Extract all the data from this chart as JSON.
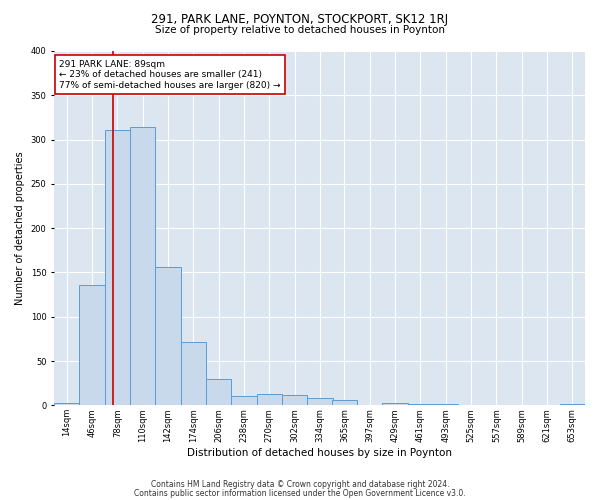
{
  "title1": "291, PARK LANE, POYNTON, STOCKPORT, SK12 1RJ",
  "title2": "Size of property relative to detached houses in Poynton",
  "xlabel": "Distribution of detached houses by size in Poynton",
  "ylabel": "Number of detached properties",
  "footer1": "Contains HM Land Registry data © Crown copyright and database right 2024.",
  "footer2": "Contains public sector information licensed under the Open Government Licence v3.0.",
  "annotation_line1": "291 PARK LANE: 89sqm",
  "annotation_line2": "← 23% of detached houses are smaller (241)",
  "annotation_line3": "77% of semi-detached houses are larger (820) →",
  "property_size": 89,
  "bins": [
    14,
    46,
    78,
    110,
    142,
    174,
    206,
    238,
    270,
    302,
    334,
    365,
    397,
    429,
    461,
    493,
    525,
    557,
    589,
    621,
    653
  ],
  "values": [
    3,
    136,
    311,
    314,
    156,
    71,
    30,
    10,
    13,
    12,
    8,
    6,
    0,
    3,
    2,
    1,
    0,
    0,
    0,
    0,
    2
  ],
  "bar_color": "#c9d9ec",
  "bar_edge_color": "#5b9bd5",
  "vline_color": "#cc0000",
  "annotation_box_color": "#cc0000",
  "background_color": "#dce6f1",
  "ylim": [
    0,
    400
  ],
  "yticks": [
    0,
    50,
    100,
    150,
    200,
    250,
    300,
    350,
    400
  ],
  "title1_fontsize": 8.5,
  "title2_fontsize": 7.5,
  "xlabel_fontsize": 7.5,
  "ylabel_fontsize": 7.0,
  "tick_fontsize": 6.0,
  "footer_fontsize": 5.5,
  "ann_fontsize": 6.5
}
